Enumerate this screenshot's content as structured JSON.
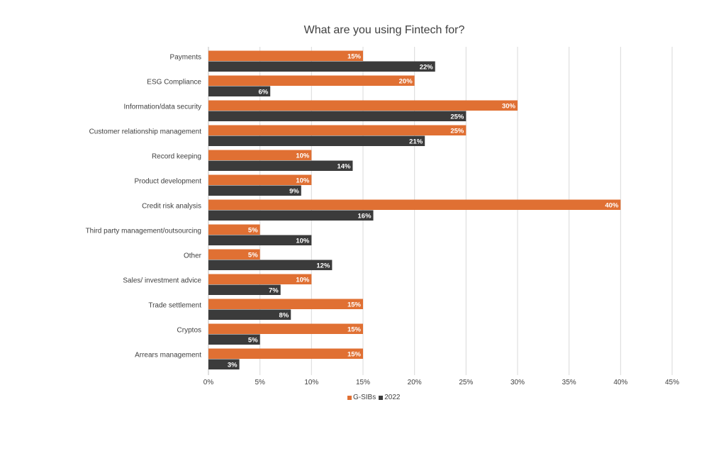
{
  "chart_data": {
    "type": "bar",
    "orientation": "horizontal",
    "title": "What are you using Fintech for?",
    "categories": [
      "Payments",
      "ESG Compliance",
      "Information/data security",
      "Customer relationship management",
      "Record keeping",
      "Product development",
      "Credit risk analysis",
      "Third party management/outsourcing",
      "Other",
      "Sales/ investment advice",
      "Trade settlement",
      "Cryptos",
      "Arrears management"
    ],
    "series": [
      {
        "name": "G-SIBs",
        "color": "#E07033",
        "values": [
          15,
          20,
          30,
          25,
          10,
          10,
          40,
          5,
          5,
          10,
          15,
          15,
          15
        ],
        "labels": [
          "15%",
          "20%",
          "30%",
          "25%",
          "10%",
          "10%",
          "40%",
          "5%",
          "5%",
          "10%",
          "15%",
          "15%",
          "15%"
        ]
      },
      {
        "name": "2022",
        "color": "#3B3B3B",
        "values": [
          22,
          6,
          25,
          21,
          14,
          9,
          16,
          10,
          12,
          7,
          8,
          5,
          3
        ],
        "labels": [
          "22%",
          "6%",
          "25%",
          "21%",
          "14%",
          "9%",
          "16%",
          "10%",
          "12%",
          "7%",
          "8%",
          "5%",
          "3%"
        ]
      }
    ],
    "xlim": [
      0,
      45
    ],
    "xticks": [
      "0%",
      "5%",
      "10%",
      "15%",
      "20%",
      "25%",
      "30%",
      "35%",
      "40%",
      "45%"
    ],
    "grid": true,
    "legend_position": "bottom"
  }
}
